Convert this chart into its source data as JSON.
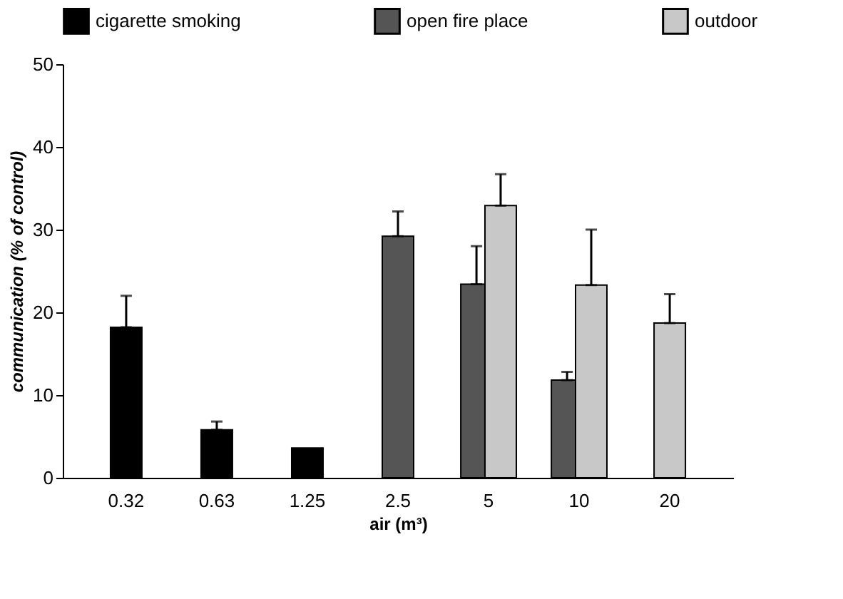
{
  "chart_data": {
    "type": "bar",
    "categories": [
      "0.32",
      "0.63",
      "1.25",
      "2.5",
      "5",
      "10",
      "20"
    ],
    "xlabel": "air (m³)",
    "ylabel": "communication (% of control)",
    "ylim": [
      0,
      50
    ],
    "yticks": [
      0,
      10,
      20,
      30,
      40,
      50
    ],
    "grid": false,
    "legend": "top",
    "series": [
      {
        "name": "cigarette smoking",
        "color": "#000000",
        "values": [
          18.2,
          5.8,
          3.6,
          null,
          null,
          null,
          null
        ],
        "errors": [
          [
            18.2,
            22.0
          ],
          [
            5.8,
            6.8
          ],
          null,
          null,
          null,
          null,
          null
        ]
      },
      {
        "name": "open fire place",
        "color": "#555555",
        "values": [
          null,
          null,
          null,
          29.2,
          23.4,
          11.8,
          null
        ],
        "errors": [
          null,
          null,
          null,
          [
            29.2,
            32.2
          ],
          [
            23.4,
            28.0
          ],
          [
            11.8,
            12.8
          ],
          null
        ]
      },
      {
        "name": "outdoor",
        "color": "#c8c8c8",
        "values": [
          null,
          null,
          null,
          null,
          32.9,
          23.3,
          18.7
        ],
        "errors": [
          null,
          null,
          null,
          null,
          [
            32.9,
            36.7
          ],
          [
            23.3,
            30.0
          ],
          [
            18.7,
            22.2
          ]
        ]
      }
    ]
  }
}
